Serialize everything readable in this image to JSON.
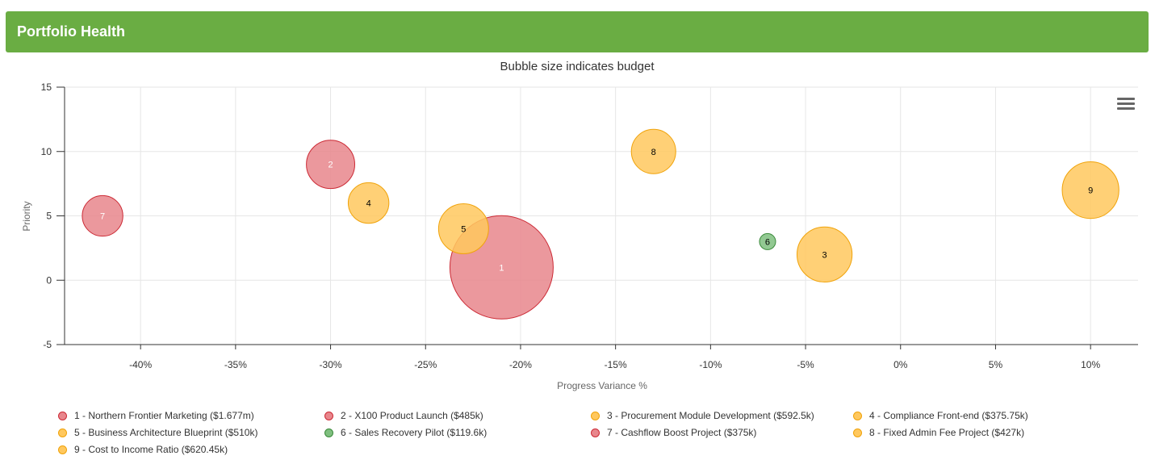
{
  "panel": {
    "title": "Portfolio Health"
  },
  "chart_data": {
    "type": "bubble",
    "title": "Bubble size indicates budget",
    "xlabel": "Progress Variance %",
    "ylabel": "Priority",
    "xlim": [
      -44,
      12.5
    ],
    "ylim": [
      -5,
      15
    ],
    "xticks": [
      -40,
      -35,
      -30,
      -25,
      -20,
      -15,
      -10,
      -5,
      0,
      5,
      10
    ],
    "xtick_labels": [
      "-40%",
      "-35%",
      "-30%",
      "-25%",
      "-20%",
      "-15%",
      "-10%",
      "-5%",
      "0%",
      "5%",
      "10%"
    ],
    "yticks": [
      -5,
      0,
      5,
      10,
      15
    ],
    "ytick_labels": [
      "-5",
      "0",
      "5",
      "10",
      "15"
    ],
    "grid": true,
    "legend_position": "bottom",
    "colors": {
      "red": {
        "fill": "#e8868c",
        "stroke": "#cc2a35"
      },
      "amber": {
        "fill": "#ffc85e",
        "stroke": "#f0a30a"
      },
      "green": {
        "fill": "#7fbf7f",
        "stroke": "#3a8a3a"
      }
    },
    "points": [
      {
        "id": "1",
        "legend_label": "1 - Northern Frontier Marketing ($1.677m)",
        "x": -21,
        "y": 1,
        "budget": 1677000,
        "status": "red"
      },
      {
        "id": "2",
        "legend_label": "2 - X100 Product Launch ($485k)",
        "x": -30,
        "y": 9,
        "budget": 485000,
        "status": "red"
      },
      {
        "id": "3",
        "legend_label": "3 - Procurement Module Development ($592.5k)",
        "x": -4,
        "y": 2,
        "budget": 592500,
        "status": "amber"
      },
      {
        "id": "4",
        "legend_label": "4 - Compliance Front-end ($375.75k)",
        "x": -28,
        "y": 6,
        "budget": 375750,
        "status": "amber"
      },
      {
        "id": "5",
        "legend_label": "5 - Business Architecture Blueprint ($510k)",
        "x": -23,
        "y": 4,
        "budget": 510000,
        "status": "amber"
      },
      {
        "id": "6",
        "legend_label": "6 - Sales Recovery Pilot ($119.6k)",
        "x": -7,
        "y": 3,
        "budget": 119600,
        "status": "green"
      },
      {
        "id": "7",
        "legend_label": "7 - Cashflow Boost Project ($375k)",
        "x": -42,
        "y": 5,
        "budget": 375000,
        "status": "red"
      },
      {
        "id": "8",
        "legend_label": "8 - Fixed Admin Fee Project ($427k)",
        "x": -13,
        "y": 10,
        "budget": 427000,
        "status": "amber"
      },
      {
        "id": "9",
        "legend_label": "9 - Cost to Income Ratio ($620.45k)",
        "x": 10,
        "y": 7,
        "budget": 620450,
        "status": "amber"
      }
    ]
  },
  "icons": {
    "menu": "hamburger-menu-icon"
  }
}
